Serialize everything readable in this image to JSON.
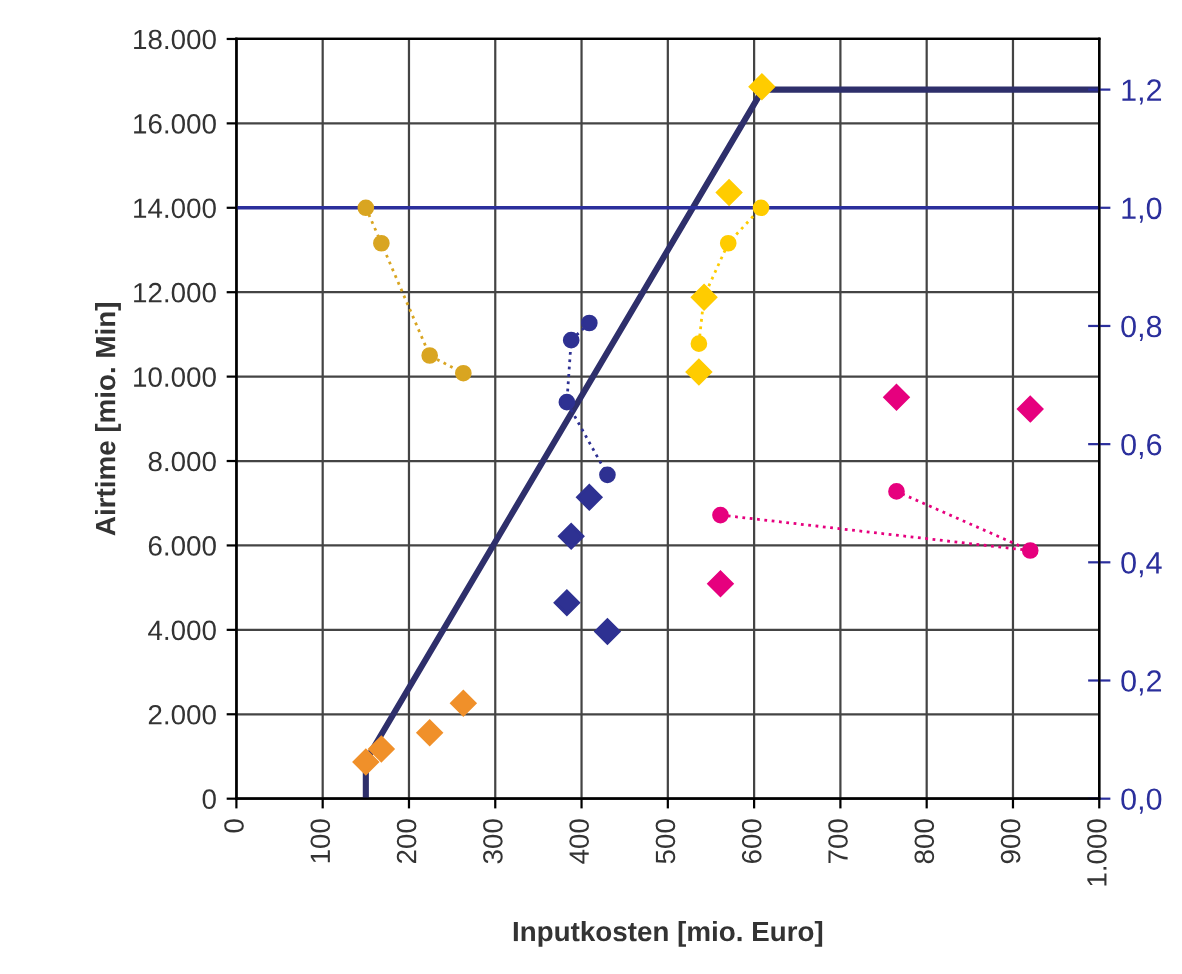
{
  "chart_data": {
    "type": "scatter",
    "xlabel": "Inputkosten [mio. Euro]",
    "ylabel": "Airtime [mio. Min]",
    "xlim": [
      0,
      1000
    ],
    "xticks": [
      0,
      100,
      200,
      300,
      400,
      500,
      600,
      700,
      800,
      900,
      {
        "value": 1000,
        "label": "1.000"
      }
    ],
    "ylim": [
      0,
      18000
    ],
    "yticks": [
      0,
      {
        "value": 2000,
        "label": "2.000"
      },
      {
        "value": 4000,
        "label": "4.000"
      },
      {
        "value": 6000,
        "label": "6.000"
      },
      {
        "value": 8000,
        "label": "8.000"
      },
      {
        "value": 10000,
        "label": "10.000"
      },
      {
        "value": 12000,
        "label": "12.000"
      },
      {
        "value": 14000,
        "label": "14.000"
      },
      {
        "value": 16000,
        "label": "16.000"
      },
      {
        "value": 18000,
        "label": "18.000"
      }
    ],
    "y2lim": [
      0,
      1.2857
    ],
    "y2ticks": [
      {
        "value": 0,
        "label": "0,0"
      },
      {
        "value": 0.2,
        "label": "0,2"
      },
      {
        "value": 0.4,
        "label": "0,4"
      },
      {
        "value": 0.6,
        "label": "0,6"
      },
      {
        "value": 0.8,
        "label": "0,8"
      },
      {
        "value": 1.0,
        "label": "1,0"
      },
      {
        "value": 1.2,
        "label": "1,2"
      }
    ],
    "grid": true,
    "legend": false,
    "ref_lines": [
      {
        "axis": "y2",
        "value": 1.0,
        "color": "#2b2f9c",
        "line_style": "solid"
      }
    ],
    "series": [
      {
        "type": "line",
        "color": "#2e2f6b",
        "x": [
          150,
          150,
          610,
          1000
        ],
        "values": [
          0,
          900,
          16800,
          16800
        ],
        "marker": "none",
        "line_style": "solid"
      },
      {
        "type": "line",
        "axis": "y2",
        "color": "#d9a521",
        "x": [
          150,
          168,
          224,
          263
        ],
        "values": [
          1.0,
          0.94,
          0.75,
          0.72
        ],
        "marker": "circle",
        "line_style": "dotted"
      },
      {
        "color": "#f0902a",
        "x": [
          150,
          168,
          224,
          263
        ],
        "values": [
          870,
          1180,
          1560,
          2260
        ],
        "marker": "diamond"
      },
      {
        "type": "line",
        "axis": "y2",
        "color": "#2e3192",
        "x": [
          409,
          388,
          383,
          430
        ],
        "values": [
          0.805,
          0.776,
          0.671,
          0.548
        ],
        "marker": "circle",
        "line_style": "dotted"
      },
      {
        "color": "#2e3192",
        "x": [
          409,
          388,
          383,
          430
        ],
        "values": [
          7140,
          6220,
          4640,
          3960
        ],
        "marker": "diamond"
      },
      {
        "type": "line",
        "axis": "y2",
        "color": "#ffcc00",
        "x": [
          536,
          542,
          570,
          608
        ],
        "values": [
          0.77,
          0.85,
          0.94,
          1.0
        ],
        "marker": "circle",
        "line_style": "dotted"
      },
      {
        "color": "#ffcc00",
        "x": [
          536,
          542,
          571,
          609
        ],
        "values": [
          10110,
          11880,
          14360,
          16870
        ],
        "marker": "diamond"
      },
      {
        "type": "line",
        "axis": "y2",
        "color": "#e6007e",
        "x": [
          561,
          920,
          765
        ],
        "values": [
          0.48,
          0.42,
          0.52
        ],
        "marker": "circle",
        "line_style": "dotted"
      },
      {
        "color": "#e6007e",
        "x": [
          561,
          765,
          920
        ],
        "values": [
          5090,
          9510,
          9230
        ],
        "marker": "diamond"
      }
    ]
  }
}
